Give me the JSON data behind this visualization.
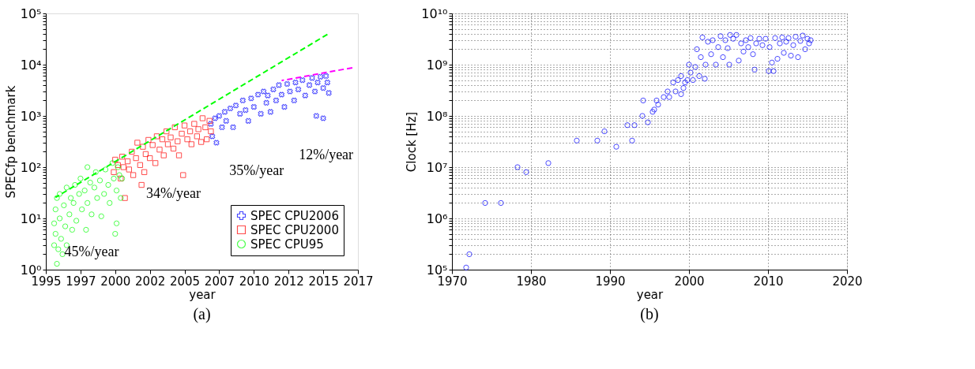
{
  "chart_data": [
    {
      "type": "scatter",
      "title": "(a)",
      "xlabel": "year",
      "ylabel": "SPECfp benchmark",
      "log": "y",
      "grid": false,
      "legend": "bottom right",
      "xlim": [
        1995,
        2017.5
      ],
      "xticks": [
        1995,
        {
          "value": 1997.5,
          "label": "1997"
        },
        2000,
        {
          "value": 2002.5,
          "label": "2002"
        },
        2005,
        {
          "value": 2007.5,
          "label": "2007"
        },
        2010,
        {
          "value": 2012.5,
          "label": "2012"
        },
        2015,
        {
          "value": 2017.5,
          "label": "2017"
        }
      ],
      "ylim": [
        1,
        100000
      ],
      "yticks": [
        {
          "value": 1,
          "label": "10⁰"
        },
        {
          "value": 2,
          "label": null
        },
        {
          "value": 3,
          "label": null
        },
        {
          "value": 4,
          "label": null
        },
        {
          "value": 5,
          "label": null
        },
        {
          "value": 6,
          "label": null
        },
        {
          "value": 7,
          "label": null
        },
        {
          "value": 8,
          "label": null
        },
        {
          "value": 9,
          "label": null
        },
        {
          "value": 10,
          "label": "10¹"
        },
        {
          "value": 20,
          "label": null
        },
        {
          "value": 30,
          "label": null
        },
        {
          "value": 40,
          "label": null
        },
        {
          "value": 50,
          "label": null
        },
        {
          "value": 60,
          "label": null
        },
        {
          "value": 70,
          "label": null
        },
        {
          "value": 80,
          "label": null
        },
        {
          "value": 90,
          "label": null
        },
        {
          "value": 100,
          "label": "10²"
        },
        {
          "value": 200,
          "label": null
        },
        {
          "value": 300,
          "label": null
        },
        {
          "value": 400,
          "label": null
        },
        {
          "value": 500,
          "label": null
        },
        {
          "value": 600,
          "label": null
        },
        {
          "value": 700,
          "label": null
        },
        {
          "value": 800,
          "label": null
        },
        {
          "value": 900,
          "label": null
        },
        {
          "value": 1000,
          "label": "10³"
        },
        {
          "value": 2000,
          "label": null
        },
        {
          "value": 3000,
          "label": null
        },
        {
          "value": 4000,
          "label": null
        },
        {
          "value": 5000,
          "label": null
        },
        {
          "value": 6000,
          "label": null
        },
        {
          "value": 7000,
          "label": null
        },
        {
          "value": 8000,
          "label": null
        },
        {
          "value": 9000,
          "label": null
        },
        {
          "value": 10000,
          "label": "10⁴"
        },
        {
          "value": 20000,
          "label": null
        },
        {
          "value": 30000,
          "label": null
        },
        {
          "value": 40000,
          "label": null
        },
        {
          "value": 50000,
          "label": null
        },
        {
          "value": 60000,
          "label": null
        },
        {
          "value": 70000,
          "label": null
        },
        {
          "value": 80000,
          "label": null
        },
        {
          "value": 90000,
          "label": null
        },
        {
          "value": 100000,
          "label": "10⁵"
        }
      ],
      "annotations": [
        "45%/year",
        "34%/year",
        "35%/year",
        "12%/year"
      ],
      "series": [
        {
          "name": "SPEC CPU2006",
          "color": "#0000ff",
          "marker": "cross",
          "x": [
            2006.9,
            2007,
            2007.2,
            2007.3,
            2007.5,
            2007.7,
            2007.9,
            2008,
            2008.3,
            2008.5,
            2008.7,
            2009,
            2009.2,
            2009.4,
            2009.6,
            2009.8,
            2010,
            2010.3,
            2010.5,
            2010.7,
            2010.9,
            2011,
            2011.2,
            2011.4,
            2011.6,
            2011.8,
            2012,
            2012.2,
            2012.4,
            2012.6,
            2012.9,
            2013,
            2013.2,
            2013.5,
            2013.7,
            2014,
            2014.2,
            2014.4,
            2014.5,
            2014.6,
            2014.8,
            2015,
            2015,
            2015.2,
            2015.3,
            2015.4
          ],
          "values": [
            700,
            400,
            900,
            300,
            1000,
            600,
            1200,
            800,
            1400,
            600,
            1600,
            1100,
            2000,
            1300,
            800,
            2200,
            1500,
            2600,
            1100,
            3000,
            1800,
            2500,
            1200,
            3300,
            2000,
            4000,
            2600,
            1500,
            4200,
            3000,
            2000,
            4500,
            3300,
            5000,
            2500,
            4000,
            5500,
            3000,
            1000,
            4500,
            5800,
            3500,
            900,
            6000,
            4500,
            2800
          ]
        },
        {
          "name": "SPEC CPU2000",
          "color": "#ff0000",
          "marker": "square",
          "x": [
            1999.9,
            2000,
            2000.2,
            2000.4,
            2000.5,
            2000.6,
            2000.7,
            2000.9,
            2001,
            2001.2,
            2001.3,
            2001.5,
            2001.6,
            2001.8,
            2001.9,
            2002,
            2002.1,
            2002.2,
            2002.4,
            2002.5,
            2002.7,
            2002.9,
            2003,
            2003.2,
            2003.4,
            2003.5,
            2003.7,
            2003.8,
            2004,
            2004.2,
            2004.3,
            2004.5,
            2004.6,
            2004.8,
            2004.9,
            2005,
            2005.2,
            2005.4,
            2005.5,
            2005.7,
            2005.9,
            2006,
            2006.2,
            2006.3,
            2006.5,
            2006.6,
            2006.8,
            2006.9
          ],
          "values": [
            80,
            140,
            110,
            60,
            160,
            100,
            25,
            130,
            90,
            200,
            70,
            150,
            300,
            110,
            45,
            250,
            80,
            180,
            340,
            150,
            270,
            120,
            400,
            220,
            350,
            170,
            500,
            280,
            380,
            230,
            600,
            320,
            170,
            450,
            70,
            650,
            350,
            500,
            280,
            700,
            400,
            550,
            310,
            900,
            600,
            350,
            800,
            500
          ]
        },
        {
          "name": "SPEC CPU95",
          "color": "#00ff00",
          "marker": "circle",
          "x": [
            1995.6,
            1995.6,
            1995.7,
            1995.7,
            1995.8,
            1995.8,
            1995.9,
            1996,
            1996,
            1996.1,
            1996.2,
            1996.3,
            1996.4,
            1996.5,
            1996.5,
            1996.7,
            1996.8,
            1996.9,
            1997,
            1997.1,
            1997.2,
            1997.4,
            1997.5,
            1997.6,
            1997.8,
            1997.9,
            1998,
            1998,
            1998.2,
            1998.3,
            1998.5,
            1998.6,
            1998.7,
            1998.9,
            1999,
            1999.2,
            1999.3,
            1999.5,
            1999.6,
            1999.8,
            1999.9,
            2000,
            2000.1,
            2000.1,
            2000.2,
            2000.3,
            2000.4,
            2000.5
          ],
          "values": [
            3,
            8,
            15,
            5,
            1.3,
            25,
            2.5,
            10,
            30,
            4,
            2,
            18,
            7,
            40,
            3,
            12,
            25,
            6,
            20,
            45,
            9,
            30,
            60,
            15,
            35,
            6,
            20,
            100,
            50,
            12,
            40,
            80,
            25,
            55,
            11,
            30,
            90,
            45,
            20,
            120,
            60,
            5,
            8,
            35,
            100,
            70,
            25,
            60
          ]
        },
        {
          "type": "line",
          "color": "#00ff00",
          "line_style": "dashed",
          "marker": "none",
          "x": [
            1995.7,
            2015.3
          ],
          "values": [
            25.7,
            39000
          ]
        },
        {
          "type": "line",
          "color": "#ff00ff",
          "line_style": "dashed",
          "marker": "none",
          "x": [
            2012,
            2017.1
          ],
          "values": [
            4900,
            8700
          ]
        }
      ]
    },
    {
      "type": "scatter",
      "title": "(b)",
      "xlabel": "year",
      "ylabel": "Clock [Hz]",
      "log": "y",
      "grid": true,
      "legend": false,
      "xlim": [
        1970,
        2020
      ],
      "xticks": [
        1970,
        1980,
        1990,
        2000,
        2010,
        2020
      ],
      "ylim": [
        100000,
        10000000000
      ],
      "yticks": [
        {
          "value": 100000,
          "label": "10⁵"
        },
        {
          "value": 200000,
          "label": null
        },
        {
          "value": 300000,
          "label": null
        },
        {
          "value": 400000,
          "label": null
        },
        {
          "value": 500000,
          "label": null
        },
        {
          "value": 600000,
          "label": null
        },
        {
          "value": 700000,
          "label": null
        },
        {
          "value": 800000,
          "label": null
        },
        {
          "value": 900000,
          "label": null
        },
        {
          "value": 1000000,
          "label": "10⁶"
        },
        {
          "value": 2000000,
          "label": null
        },
        {
          "value": 3000000,
          "label": null
        },
        {
          "value": 4000000,
          "label": null
        },
        {
          "value": 5000000,
          "label": null
        },
        {
          "value": 6000000,
          "label": null
        },
        {
          "value": 7000000,
          "label": null
        },
        {
          "value": 8000000,
          "label": null
        },
        {
          "value": 9000000,
          "label": null
        },
        {
          "value": 10000000,
          "label": "10⁷"
        },
        {
          "value": 20000000,
          "label": null
        },
        {
          "value": 30000000,
          "label": null
        },
        {
          "value": 40000000,
          "label": null
        },
        {
          "value": 50000000,
          "label": null
        },
        {
          "value": 60000000,
          "label": null
        },
        {
          "value": 70000000,
          "label": null
        },
        {
          "value": 80000000,
          "label": null
        },
        {
          "value": 90000000,
          "label": null
        },
        {
          "value": 100000000,
          "label": "10⁸"
        },
        {
          "value": 200000000,
          "label": null
        },
        {
          "value": 300000000,
          "label": null
        },
        {
          "value": 400000000,
          "label": null
        },
        {
          "value": 500000000,
          "label": null
        },
        {
          "value": 600000000,
          "label": null
        },
        {
          "value": 700000000,
          "label": null
        },
        {
          "value": 800000000,
          "label": null
        },
        {
          "value": 900000000,
          "label": null
        },
        {
          "value": 1000000000,
          "label": "10⁹"
        },
        {
          "value": 2000000000,
          "label": null
        },
        {
          "value": 3000000000,
          "label": null
        },
        {
          "value": 4000000000,
          "label": null
        },
        {
          "value": 5000000000,
          "label": null
        },
        {
          "value": 6000000000,
          "label": null
        },
        {
          "value": 7000000000,
          "label": null
        },
        {
          "value": 8000000000,
          "label": null
        },
        {
          "value": 9000000000,
          "label": null
        },
        {
          "value": 10000000000,
          "label": "10¹⁰"
        }
      ],
      "series": [
        {
          "color": "#0000ff",
          "marker": "circle",
          "x": [
            1971.8,
            1972.2,
            1974.2,
            1976.2,
            1978.3,
            1979.4,
            1982.2,
            1985.8,
            1988.4,
            1989.3,
            1990.8,
            1992.2,
            1992.8,
            1993.1,
            1994.1,
            1994.2,
            1994.8,
            1995.4,
            1995.6,
            1995.9,
            1996.1,
            1996.8,
            1997.3,
            1997.5,
            1998,
            1998.3,
            1998.6,
            1999,
            1999,
            1999.3,
            1999.5,
            1999.8,
            2000,
            2000.2,
            2000.5,
            2000.8,
            2001,
            2001.3,
            2001.5,
            2001.7,
            2002,
            2002.1,
            2002.4,
            2002.8,
            2003,
            2003.4,
            2003.7,
            2004,
            2004.3,
            2004.6,
            2004.9,
            2005.1,
            2005.2,
            2005.6,
            2006,
            2006.3,
            2006.6,
            2006.9,
            2007.2,
            2007.5,
            2007.8,
            2008.1,
            2008.3,
            2008.5,
            2008.9,
            2009.3,
            2009.7,
            2010.1,
            2010.2,
            2010.5,
            2010.7,
            2010.9,
            2011.2,
            2011.5,
            2011.8,
            2012,
            2012.3,
            2012.6,
            2012.9,
            2013.2,
            2013.5,
            2013.8,
            2014.1,
            2014.4,
            2014.7,
            2015,
            2015.2,
            2015.4
          ],
          "values": [
            110000,
            200000,
            2000000,
            2000000,
            10000000,
            8000000,
            12000000,
            33000000,
            33000000,
            50000000,
            25000000,
            66000000,
            33000000,
            66000000,
            100000000,
            200000000,
            75000000,
            120000000,
            133000000,
            200000000,
            166000000,
            233000000,
            300000000,
            233000000,
            450000000,
            300000000,
            500000000,
            600000000,
            266000000,
            350000000,
            450000000,
            500000000,
            1000000000,
            700000000,
            500000000,
            900000000,
            2000000000,
            600000000,
            1400000000,
            3400000000,
            530000000,
            1000000000,
            2800000000,
            1600000000,
            3000000000,
            1000000000,
            2200000000,
            3600000000,
            1400000000,
            3000000000,
            2100000000,
            1000000000,
            3800000000,
            3200000000,
            3800000000,
            1200000000,
            2600000000,
            1800000000,
            3000000000,
            2200000000,
            3300000000,
            1600000000,
            800000000,
            2600000000,
            3200000000,
            2400000000,
            3200000000,
            750000000,
            2200000000,
            1100000000,
            750000000,
            3300000000,
            1300000000,
            2600000000,
            3400000000,
            1700000000,
            2800000000,
            3300000000,
            1500000000,
            2400000000,
            3500000000,
            1400000000,
            2900000000,
            3700000000,
            2000000000,
            3200000000,
            2600000000,
            3000000000
          ]
        }
      ]
    }
  ]
}
